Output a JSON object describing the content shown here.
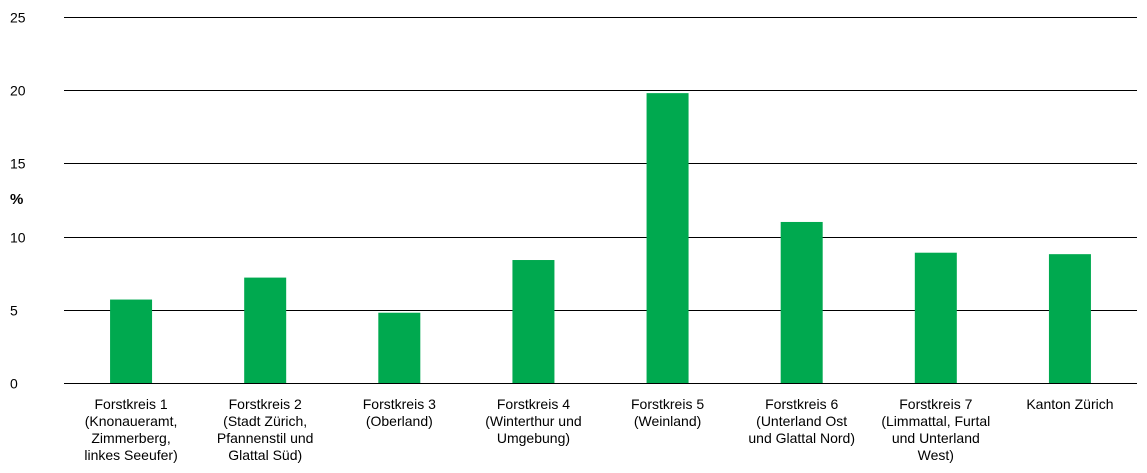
{
  "chart_data": {
    "type": "bar",
    "ylabel": "%",
    "ylim": [
      0,
      25
    ],
    "yticks": [
      0,
      5,
      10,
      15,
      20,
      25
    ],
    "grid": true,
    "bar_color": "#00a94f",
    "grid_color": "#000000",
    "categories": [
      [
        "Forstkreis 1",
        "(Knonaueramt,",
        "Zimmerberg,",
        "linkes Seeufer)"
      ],
      [
        "Forstkreis 2",
        "(Stadt Zürich,",
        "Pfannenstil und",
        "Glattal Süd)"
      ],
      [
        "Forstkreis 3",
        "(Oberland)"
      ],
      [
        "Forstkreis 4",
        "(Winterthur und",
        "Umgebung)"
      ],
      [
        "Forstkreis 5",
        "(Weinland)"
      ],
      [
        "Forstkreis 6",
        "(Unterland Ost",
        "und Glattal Nord)"
      ],
      [
        "Forstkreis 7",
        "(Limmattal, Furtal",
        "und Unterland",
        "West)"
      ],
      [
        "Kanton Zürich"
      ]
    ],
    "values": [
      5.7,
      7.2,
      4.8,
      8.4,
      19.8,
      11.0,
      8.9,
      8.8
    ]
  }
}
